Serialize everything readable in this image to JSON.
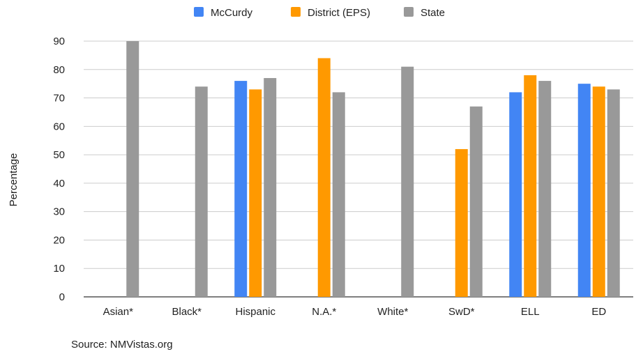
{
  "chart_data": {
    "type": "bar",
    "categories": [
      "Asian*",
      "Black*",
      "Hispanic",
      "N.A.*",
      "White*",
      "SwD*",
      "ELL",
      "ED"
    ],
    "series": [
      {
        "name": "McCurdy",
        "color": "#4285f4",
        "values": [
          null,
          null,
          76,
          null,
          null,
          null,
          72,
          75
        ]
      },
      {
        "name": "District (EPS)",
        "color": "#ff9900",
        "values": [
          null,
          null,
          73,
          84,
          null,
          52,
          78,
          74
        ]
      },
      {
        "name": "State",
        "color": "#999999",
        "values": [
          90,
          74,
          77,
          72,
          81,
          67,
          76,
          73
        ]
      }
    ],
    "ylabel": "Percentage",
    "ylim": [
      0,
      90
    ],
    "yticks": [
      0,
      10,
      20,
      30,
      40,
      50,
      60,
      70,
      80,
      90
    ],
    "grid": true,
    "legend_position": "top-center",
    "source": "Source: NMVistas.org"
  }
}
